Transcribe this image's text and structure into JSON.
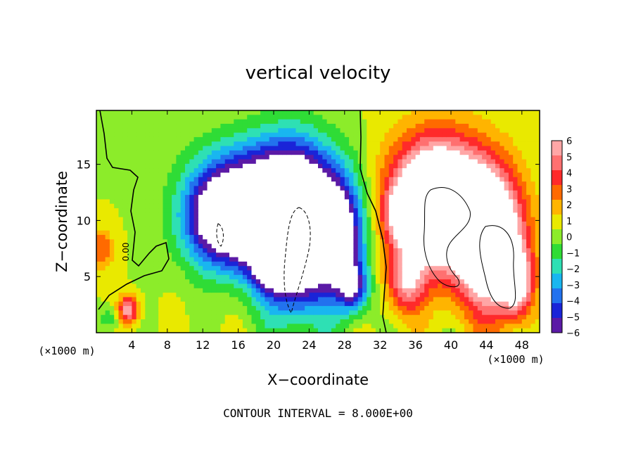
{
  "chart_data": {
    "type": "heatmap",
    "title": "vertical velocity",
    "xlabel": "X−coordinate",
    "ylabel": "Z−coordinate",
    "x_unit_label": "(×1000 m)",
    "y_unit_label": "(×1000 m)",
    "xlim": [
      0,
      50
    ],
    "ylim": [
      0,
      19.8
    ],
    "x_ticks": [
      4,
      8,
      12,
      16,
      20,
      24,
      28,
      32,
      36,
      40,
      44,
      48
    ],
    "x_tick_labels": [
      "4",
      "8",
      "12",
      "16",
      "20",
      "24",
      "28",
      "32",
      "36",
      "40",
      "44",
      "48"
    ],
    "y_ticks": [
      5,
      10,
      15
    ],
    "y_tick_labels": [
      "5",
      "10",
      "15"
    ],
    "footer": "CONTOUR INTERVAL = 8.000E+00",
    "contour_label": "0.00",
    "colorbar": {
      "levels": [
        6,
        5,
        4,
        3,
        2,
        1,
        0,
        -1,
        -2,
        -3,
        -4,
        -5,
        -6
      ],
      "labels": [
        "6",
        "5",
        "4",
        "3",
        "2",
        "1",
        "0",
        "−1",
        "−2",
        "−3",
        "−4",
        "−5",
        "−6"
      ],
      "colors": [
        "#ffa6a6",
        "#ff7070",
        "#ff2a2a",
        "#ff6a00",
        "#ffb400",
        "#e9e900",
        "#8cec2a",
        "#2fdc36",
        "#2ee0b4",
        "#19b6f0",
        "#2272ee",
        "#1a24d8",
        "#5b1aa6"
      ]
    },
    "background_value": 0.5,
    "features": [
      {
        "kind": "updraft",
        "x": 38.5,
        "z": 11.5,
        "w": 14,
        "sx": 3.6,
        "sy": 3.8
      },
      {
        "kind": "updraft",
        "x": 44.5,
        "z": 8.0,
        "w": 11,
        "sx": 2.6,
        "sy": 4.2
      },
      {
        "kind": "updraft",
        "x": 47.5,
        "z": 4.5,
        "w": 6,
        "sx": 1.2,
        "sy": 2.0
      },
      {
        "kind": "updraft",
        "x": 34.8,
        "z": 10.5,
        "w": 5,
        "sx": 1.3,
        "sy": 1.5
      },
      {
        "kind": "updraft",
        "x": 35.0,
        "z": 4.5,
        "w": 5,
        "sx": 1.5,
        "sy": 2.0
      },
      {
        "kind": "updraft",
        "x": 3.6,
        "z": 2.0,
        "w": 6,
        "sx": 0.8,
        "sy": 0.9
      },
      {
        "kind": "updraft",
        "x": 0.5,
        "z": 7.5,
        "w": 3,
        "sx": 1.0,
        "sy": 1.2
      },
      {
        "kind": "downdraft",
        "x": 22.5,
        "z": 9.0,
        "w": -13,
        "sx": 3.0,
        "sy": 4.5
      },
      {
        "kind": "downdraft",
        "x": 14.5,
        "z": 10.0,
        "w": -10,
        "sx": 3.2,
        "sy": 3.0
      },
      {
        "kind": "downdraft",
        "x": 20.0,
        "z": 8.0,
        "w": -8,
        "sx": 2.0,
        "sy": 2.5
      },
      {
        "kind": "downdraft",
        "x": 27.5,
        "z": 8.5,
        "w": -8,
        "sx": 2.0,
        "sy": 3.5
      },
      {
        "kind": "downdraft",
        "x": 19.0,
        "z": 13.5,
        "w": -5,
        "sx": 5.0,
        "sy": 3.0
      },
      {
        "kind": "downdraft",
        "x": 29.0,
        "z": 4.0,
        "w": -5,
        "sx": 1.2,
        "sy": 1.5
      },
      {
        "kind": "downdraft",
        "x": 1.5,
        "z": 1.2,
        "w": -2,
        "sx": 1.0,
        "sy": 0.8
      }
    ],
    "grid": false
  }
}
